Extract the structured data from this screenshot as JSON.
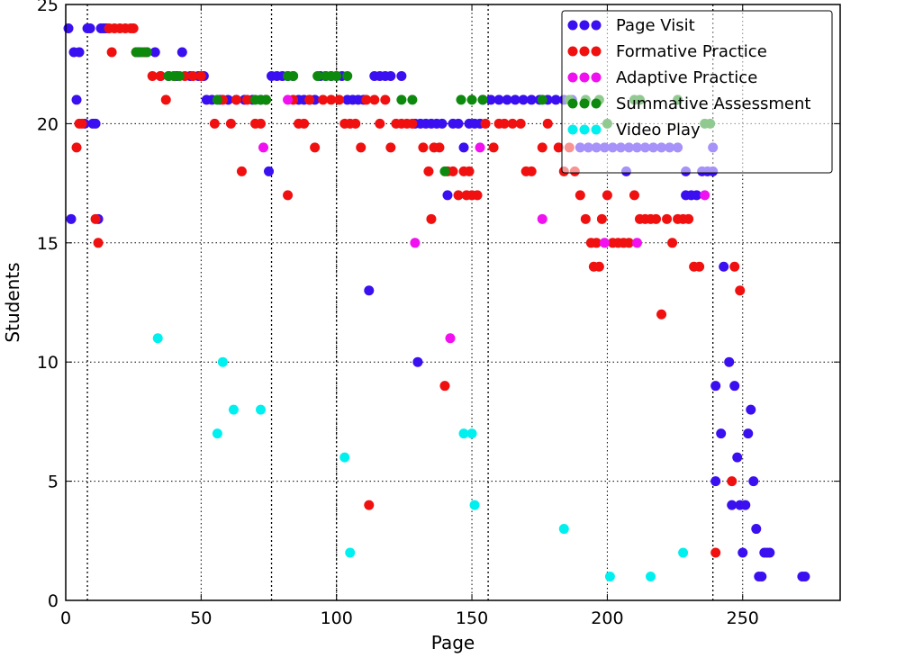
{
  "chart_data": {
    "type": "scatter",
    "title": "",
    "xlabel": "Page",
    "ylabel": "Students",
    "xlim": [
      0,
      286
    ],
    "ylim": [
      0,
      25
    ],
    "x_ticks": [
      0,
      50,
      100,
      150,
      200,
      250
    ],
    "y_ticks": [
      0,
      5,
      10,
      15,
      20,
      25
    ],
    "grid": "dotted",
    "legend_position": "top-right",
    "vertical_markers": [
      8,
      76,
      100,
      156,
      239
    ],
    "series": [
      {
        "name": "Page Visit",
        "color": "#3a0ff0",
        "points": [
          [
            1,
            24
          ],
          [
            2,
            16
          ],
          [
            3,
            23
          ],
          [
            4,
            21
          ],
          [
            5,
            23
          ],
          [
            7,
            20
          ],
          [
            8,
            24
          ],
          [
            9,
            24
          ],
          [
            10,
            20
          ],
          [
            11,
            20
          ],
          [
            12,
            16
          ],
          [
            13,
            24
          ],
          [
            14,
            24
          ],
          [
            15,
            24
          ],
          [
            27,
            23
          ],
          [
            30,
            23
          ],
          [
            33,
            23
          ],
          [
            35,
            22
          ],
          [
            38,
            22
          ],
          [
            41,
            22
          ],
          [
            43,
            23
          ],
          [
            46,
            22
          ],
          [
            49,
            22
          ],
          [
            51,
            22
          ],
          [
            52,
            21
          ],
          [
            54,
            21
          ],
          [
            57,
            21
          ],
          [
            60,
            21
          ],
          [
            63,
            21
          ],
          [
            66,
            21
          ],
          [
            69,
            21
          ],
          [
            72,
            21
          ],
          [
            74,
            21
          ],
          [
            75,
            18
          ],
          [
            76,
            22
          ],
          [
            78,
            22
          ],
          [
            80,
            22
          ],
          [
            82,
            22
          ],
          [
            84,
            22
          ],
          [
            86,
            21
          ],
          [
            88,
            21
          ],
          [
            90,
            21
          ],
          [
            92,
            21
          ],
          [
            94,
            22
          ],
          [
            96,
            22
          ],
          [
            98,
            22
          ],
          [
            100,
            22
          ],
          [
            102,
            22
          ],
          [
            104,
            21
          ],
          [
            106,
            21
          ],
          [
            108,
            21
          ],
          [
            110,
            21
          ],
          [
            112,
            13
          ],
          [
            114,
            22
          ],
          [
            116,
            22
          ],
          [
            118,
            22
          ],
          [
            120,
            22
          ],
          [
            124,
            22
          ],
          [
            129,
            20
          ],
          [
            130,
            10
          ],
          [
            131,
            20
          ],
          [
            133,
            20
          ],
          [
            135,
            20
          ],
          [
            137,
            20
          ],
          [
            139,
            20
          ],
          [
            141,
            17
          ],
          [
            143,
            20
          ],
          [
            145,
            20
          ],
          [
            147,
            19
          ],
          [
            149,
            20
          ],
          [
            151,
            20
          ],
          [
            153,
            20
          ],
          [
            154,
            21
          ],
          [
            157,
            21
          ],
          [
            160,
            21
          ],
          [
            163,
            21
          ],
          [
            166,
            21
          ],
          [
            169,
            21
          ],
          [
            172,
            21
          ],
          [
            175,
            21
          ],
          [
            178,
            21
          ],
          [
            181,
            21
          ],
          [
            184,
            21
          ],
          [
            187,
            21
          ],
          [
            190,
            19
          ],
          [
            193,
            19
          ],
          [
            196,
            19
          ],
          [
            199,
            19
          ],
          [
            202,
            19
          ],
          [
            205,
            19
          ],
          [
            207,
            18
          ],
          [
            208,
            19
          ],
          [
            211,
            19
          ],
          [
            214,
            19
          ],
          [
            217,
            19
          ],
          [
            220,
            19
          ],
          [
            223,
            19
          ],
          [
            226,
            19
          ],
          [
            229,
            18
          ],
          [
            229,
            17
          ],
          [
            231,
            17
          ],
          [
            233,
            17
          ],
          [
            235,
            18
          ],
          [
            237,
            18
          ],
          [
            239,
            18
          ],
          [
            239,
            19
          ],
          [
            240,
            9
          ],
          [
            240,
            5
          ],
          [
            242,
            7
          ],
          [
            243,
            14
          ],
          [
            245,
            10
          ],
          [
            246,
            4
          ],
          [
            247,
            9
          ],
          [
            248,
            6
          ],
          [
            249,
            4
          ],
          [
            250,
            2
          ],
          [
            251,
            4
          ],
          [
            252,
            7
          ],
          [
            253,
            8
          ],
          [
            254,
            5
          ],
          [
            255,
            3
          ],
          [
            256,
            1
          ],
          [
            257,
            1
          ],
          [
            258,
            2
          ],
          [
            259,
            2
          ],
          [
            260,
            2
          ],
          [
            272,
            1
          ],
          [
            273,
            1
          ]
        ]
      },
      {
        "name": "Formative Practice",
        "color": "#f01010",
        "points": [
          [
            4,
            19
          ],
          [
            5,
            20
          ],
          [
            6,
            20
          ],
          [
            11,
            16
          ],
          [
            12,
            15
          ],
          [
            16,
            24
          ],
          [
            17,
            23
          ],
          [
            18,
            24
          ],
          [
            20,
            24
          ],
          [
            22,
            24
          ],
          [
            24,
            24
          ],
          [
            25,
            24
          ],
          [
            26,
            23
          ],
          [
            29,
            23
          ],
          [
            32,
            22
          ],
          [
            35,
            22
          ],
          [
            37,
            21
          ],
          [
            40,
            22
          ],
          [
            44,
            22
          ],
          [
            47,
            22
          ],
          [
            50,
            22
          ],
          [
            55,
            20
          ],
          [
            58,
            21
          ],
          [
            61,
            20
          ],
          [
            63,
            21
          ],
          [
            65,
            18
          ],
          [
            67,
            21
          ],
          [
            70,
            20
          ],
          [
            72,
            20
          ],
          [
            74,
            21
          ],
          [
            82,
            17
          ],
          [
            84,
            21
          ],
          [
            86,
            20
          ],
          [
            88,
            20
          ],
          [
            90,
            21
          ],
          [
            92,
            19
          ],
          [
            95,
            21
          ],
          [
            98,
            21
          ],
          [
            101,
            21
          ],
          [
            103,
            20
          ],
          [
            105,
            20
          ],
          [
            107,
            20
          ],
          [
            109,
            19
          ],
          [
            111,
            21
          ],
          [
            112,
            4
          ],
          [
            114,
            21
          ],
          [
            116,
            20
          ],
          [
            118,
            21
          ],
          [
            120,
            19
          ],
          [
            122,
            20
          ],
          [
            124,
            20
          ],
          [
            126,
            20
          ],
          [
            128,
            20
          ],
          [
            132,
            19
          ],
          [
            134,
            18
          ],
          [
            135,
            16
          ],
          [
            136,
            19
          ],
          [
            138,
            19
          ],
          [
            140,
            9
          ],
          [
            141,
            18
          ],
          [
            143,
            18
          ],
          [
            145,
            17
          ],
          [
            147,
            18
          ],
          [
            148,
            17
          ],
          [
            149,
            18
          ],
          [
            150,
            17
          ],
          [
            152,
            17
          ],
          [
            155,
            20
          ],
          [
            158,
            19
          ],
          [
            160,
            20
          ],
          [
            162,
            20
          ],
          [
            165,
            20
          ],
          [
            168,
            20
          ],
          [
            170,
            18
          ],
          [
            172,
            18
          ],
          [
            176,
            19
          ],
          [
            178,
            20
          ],
          [
            182,
            19
          ],
          [
            184,
            18
          ],
          [
            186,
            19
          ],
          [
            188,
            18
          ],
          [
            190,
            17
          ],
          [
            192,
            16
          ],
          [
            194,
            15
          ],
          [
            195,
            14
          ],
          [
            196,
            15
          ],
          [
            197,
            14
          ],
          [
            198,
            16
          ],
          [
            200,
            17
          ],
          [
            202,
            15
          ],
          [
            204,
            15
          ],
          [
            206,
            15
          ],
          [
            208,
            15
          ],
          [
            210,
            17
          ],
          [
            212,
            16
          ],
          [
            214,
            16
          ],
          [
            216,
            16
          ],
          [
            218,
            16
          ],
          [
            220,
            12
          ],
          [
            222,
            16
          ],
          [
            224,
            15
          ],
          [
            226,
            16
          ],
          [
            228,
            16
          ],
          [
            230,
            16
          ],
          [
            232,
            14
          ],
          [
            234,
            14
          ],
          [
            240,
            2
          ],
          [
            246,
            5
          ],
          [
            247,
            14
          ],
          [
            249,
            13
          ]
        ]
      },
      {
        "name": "Adaptive Practice",
        "color": "#f010f0",
        "points": [
          [
            73,
            19
          ],
          [
            82,
            21
          ],
          [
            129,
            15
          ],
          [
            142,
            11
          ],
          [
            153,
            19
          ],
          [
            176,
            16
          ],
          [
            199,
            15
          ],
          [
            211,
            15
          ],
          [
            236,
            17
          ]
        ]
      },
      {
        "name": "Summative Assessment",
        "color": "#0d8a0d",
        "points": [
          [
            26,
            23
          ],
          [
            28,
            23
          ],
          [
            30,
            23
          ],
          [
            38,
            22
          ],
          [
            40,
            22
          ],
          [
            42,
            22
          ],
          [
            56,
            21
          ],
          [
            70,
            21
          ],
          [
            72,
            21
          ],
          [
            74,
            21
          ],
          [
            82,
            22
          ],
          [
            84,
            22
          ],
          [
            93,
            22
          ],
          [
            96,
            22
          ],
          [
            98,
            22
          ],
          [
            100,
            22
          ],
          [
            104,
            22
          ],
          [
            124,
            21
          ],
          [
            128,
            21
          ],
          [
            140,
            18
          ],
          [
            146,
            21
          ],
          [
            150,
            21
          ],
          [
            154,
            21
          ],
          [
            176,
            21
          ],
          [
            186,
            21
          ],
          [
            192,
            21
          ],
          [
            197,
            21
          ],
          [
            200,
            20
          ],
          [
            210,
            21
          ],
          [
            212,
            21
          ],
          [
            226,
            21
          ],
          [
            236,
            20
          ],
          [
            238,
            20
          ]
        ]
      },
      {
        "name": "Video Play",
        "color": "#00f0f0",
        "points": [
          [
            34,
            11
          ],
          [
            56,
            7
          ],
          [
            58,
            10
          ],
          [
            62,
            8
          ],
          [
            72,
            8
          ],
          [
            103,
            6
          ],
          [
            105,
            2
          ],
          [
            147,
            7
          ],
          [
            150,
            7
          ],
          [
            151,
            4
          ],
          [
            184,
            3
          ],
          [
            201,
            1
          ],
          [
            216,
            1
          ],
          [
            228,
            2
          ]
        ]
      }
    ]
  }
}
